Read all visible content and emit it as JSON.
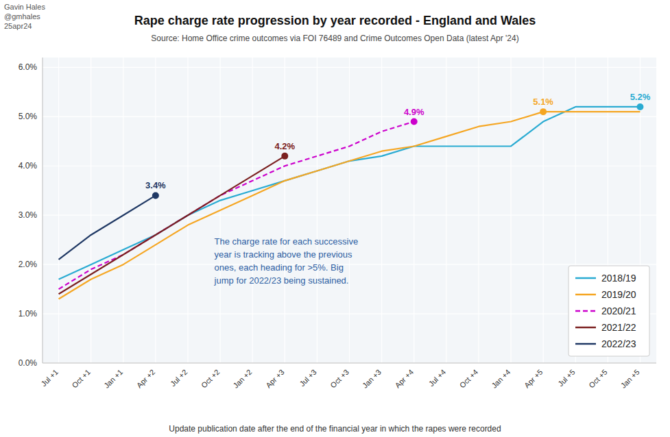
{
  "chart_data": {
    "type": "line",
    "title": "Rape charge rate progression by year recorded - England and Wales",
    "subtitle": "Source: Home Office crime outcomes via FOI 76489 and Crime Outcomes Open Data (latest Apr '24)",
    "x_label": "Update publication date after the end of the financial year in which the rapes were recorded",
    "annotations": [
      "The charge rate for each successive\nyear is tracking above the previous\nones, each heading for >5%. Big\njump for 2022/23 being sustained.",
      "Gavin Hales\n@gmhales\n25apr24"
    ],
    "categories": [
      "Jul +1",
      "Oct +1",
      "Jan +1",
      "Apr +2",
      "Jul +2",
      "Oct +2",
      "Jan +2",
      "Apr +3",
      "Jul +3",
      "Oct +3",
      "Jan +3",
      "Apr +4",
      "Jul +4",
      "Oct +4",
      "Jan +4",
      "Apr +5",
      "Jul +5",
      "Oct +5",
      "Jan +5"
    ],
    "series": [
      {
        "name": "2018/19",
        "color": "#2AABD2",
        "line_style": "solid",
        "values": [
          0.017,
          0.02,
          0.023,
          0.026,
          0.03,
          0.033,
          0.035,
          0.037,
          0.039,
          0.041,
          0.042,
          0.044,
          0.044,
          0.044,
          0.044,
          0.049,
          0.052,
          0.052,
          0.052
        ],
        "value_labels": [
          null,
          null,
          null,
          null,
          null,
          null,
          null,
          null,
          null,
          null,
          null,
          null,
          null,
          null,
          null,
          null,
          null,
          null,
          "5.2%"
        ]
      },
      {
        "name": "2019/20",
        "color": "#F5A623",
        "line_style": "solid",
        "values": [
          0.013,
          0.017,
          0.02,
          0.024,
          0.028,
          0.031,
          0.034,
          0.037,
          0.039,
          0.041,
          0.043,
          0.044,
          0.046,
          0.048,
          0.049,
          0.051,
          0.051,
          0.051,
          0.051
        ],
        "value_labels": [
          null,
          null,
          null,
          null,
          null,
          null,
          null,
          null,
          null,
          null,
          null,
          null,
          null,
          null,
          null,
          "5.1%",
          null,
          null,
          null
        ]
      },
      {
        "name": "2020/21",
        "color": "#CC00CC",
        "line_style": "dashed",
        "values": [
          0.015,
          0.019,
          0.022,
          0.026,
          0.03,
          0.034,
          0.037,
          0.04,
          0.042,
          0.044,
          0.047,
          0.049,
          null,
          null,
          null,
          null,
          null,
          null,
          null
        ],
        "value_labels": [
          null,
          null,
          null,
          null,
          null,
          null,
          null,
          null,
          null,
          null,
          null,
          "4.9%",
          null,
          null,
          null,
          null,
          null,
          null,
          null
        ]
      },
      {
        "name": "2021/22",
        "color": "#7B2020",
        "line_style": "solid",
        "values": [
          0.014,
          0.018,
          0.022,
          0.026,
          0.03,
          0.034,
          0.038,
          0.042,
          null,
          null,
          null,
          null,
          null,
          null,
          null,
          null,
          null,
          null,
          null
        ],
        "value_labels": [
          null,
          null,
          null,
          null,
          null,
          null,
          null,
          "4.2%",
          null,
          null,
          null,
          null,
          null,
          null,
          null,
          null,
          null,
          null,
          null
        ]
      },
      {
        "name": "2022/23",
        "color": "#1F3864",
        "line_style": "solid",
        "values": [
          0.021,
          0.026,
          0.03,
          0.034,
          null,
          null,
          null,
          null,
          null,
          null,
          null,
          null,
          null,
          null,
          null,
          null,
          null,
          null,
          null
        ],
        "value_labels": [
          null,
          null,
          null,
          "3.4%",
          null,
          null,
          null,
          null,
          null,
          null,
          null,
          null,
          null,
          null,
          null,
          null,
          null,
          null,
          null
        ]
      }
    ],
    "ylim": [
      0.0,
      0.062
    ],
    "yticks": [
      {
        "value": 0.0,
        "label": "0.0%"
      },
      {
        "value": 0.01,
        "label": "1.0%"
      },
      {
        "value": 0.02,
        "label": "2.0%"
      },
      {
        "value": 0.03,
        "label": "3.0%"
      },
      {
        "value": 0.04,
        "label": "4.0%"
      },
      {
        "value": 0.05,
        "label": "5.0%"
      },
      {
        "value": 0.06,
        "label": "6.0%"
      }
    ],
    "grid": true,
    "data_labels": true,
    "legend": "lower right"
  }
}
